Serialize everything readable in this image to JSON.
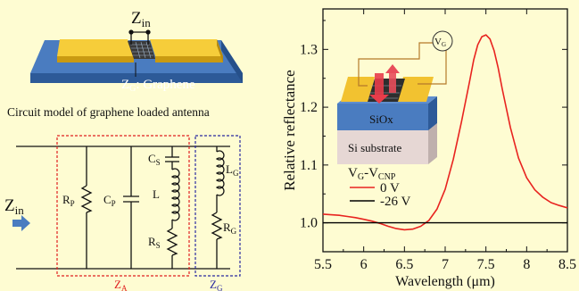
{
  "antenna": {
    "zin_label": "Z",
    "zin_sub": "in",
    "zg_label": "Z",
    "zg_sub": "G",
    "graphene_text": ": Graphene"
  },
  "caption": "Circuit model of graphene loaded antenna",
  "circuit": {
    "zin_main": "Z",
    "zin_sub": "in",
    "rp_main": "R",
    "rp_sub": "P",
    "cp_main": "C",
    "cp_sub": "P",
    "cs_main": "C",
    "cs_sub": "S",
    "l_main": "L",
    "rs_main": "R",
    "rs_sub": "S",
    "lg_main": "L",
    "lg_sub": "G",
    "rg_main": "R",
    "rg_sub": "G",
    "za_main": "Z",
    "za_sub": "A",
    "zg_main": "Z",
    "zg_sub": "G"
  },
  "inset": {
    "vg_main": "V",
    "vg_sub": "G",
    "siox": "SiOx",
    "si_substrate": "Si substrate"
  },
  "colors": {
    "background": "#fefcd2",
    "gold": "#f2c230",
    "blue_substrate": "#3d6fb2",
    "red_curve": "#e8231f",
    "za_box": "#e02020",
    "zg_box": "#2a2aa0"
  },
  "chart_data": {
    "type": "line",
    "xlabel": "Wavelength (μm)",
    "ylabel": "Relative reflectance",
    "xlim": [
      5.5,
      8.5
    ],
    "ylim": [
      0.95,
      1.37
    ],
    "xticks": [
      "5.5",
      "6",
      "6.5",
      "7",
      "7.5",
      "8",
      "8.5"
    ],
    "yticks": [
      "1.0",
      "1.1",
      "1.2",
      "1.3"
    ],
    "legend_title_main": "V",
    "legend_title_sub1": "G",
    "legend_title_mid": "-V",
    "legend_title_sub2": "CNP",
    "grid": false,
    "legend": "lower-left",
    "series": [
      {
        "name": "0 V",
        "color": "#e8231f",
        "x": [
          5.5,
          5.6,
          5.7,
          5.8,
          5.9,
          6.0,
          6.1,
          6.2,
          6.3,
          6.4,
          6.5,
          6.6,
          6.7,
          6.8,
          6.9,
          7.0,
          7.1,
          7.2,
          7.3,
          7.35,
          7.4,
          7.45,
          7.5,
          7.55,
          7.6,
          7.65,
          7.7,
          7.8,
          7.9,
          8.0,
          8.1,
          8.2,
          8.3,
          8.4,
          8.5
        ],
        "y": [
          1.015,
          1.014,
          1.013,
          1.011,
          1.009,
          1.006,
          1.003,
          0.999,
          0.994,
          0.99,
          0.988,
          0.989,
          0.994,
          1.004,
          1.024,
          1.058,
          1.11,
          1.175,
          1.245,
          1.282,
          1.308,
          1.322,
          1.325,
          1.318,
          1.298,
          1.268,
          1.232,
          1.165,
          1.112,
          1.078,
          1.057,
          1.044,
          1.035,
          1.03,
          1.026
        ]
      },
      {
        "name": "-26 V",
        "color": "#000000",
        "x": [
          5.5,
          8.5
        ],
        "y": [
          1.0,
          1.0
        ]
      }
    ]
  }
}
